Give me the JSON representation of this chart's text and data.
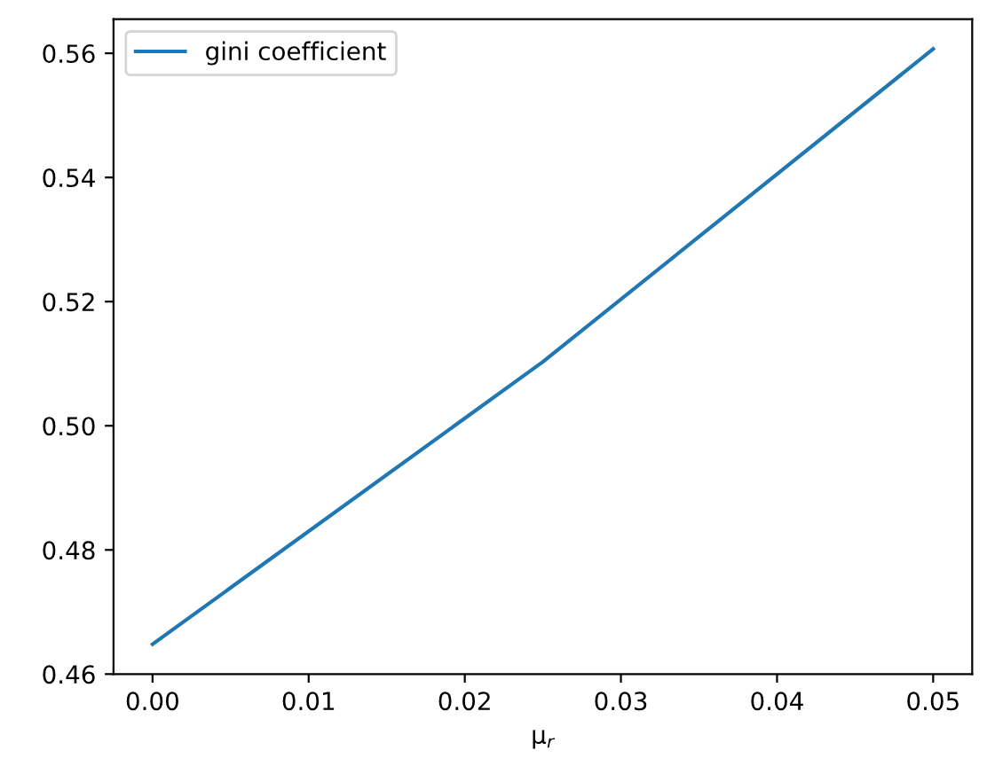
{
  "chart_data": {
    "type": "line",
    "xlabel": "μ$_{r}$",
    "x": [
      0,
      0.025,
      0.05
    ],
    "series": [
      {
        "name": "gini coefficient",
        "color": "#1f77b4",
        "values": [
          0.4648,
          0.5103,
          0.5607
        ]
      }
    ],
    "xlim": [
      -0.0025,
      0.0525
    ],
    "ylim": [
      0.46,
      0.5655
    ],
    "xticks": [
      {
        "value": 0,
        "label": "0.00"
      },
      0.01,
      0.02,
      0.03,
      0.04,
      0.05
    ],
    "yticks": [
      {
        "value": 0.46,
        "label": "0.46"
      },
      {
        "value": 0.48,
        "label": "0.48"
      },
      {
        "value": 0.5,
        "label": "0.50"
      },
      {
        "value": 0.52,
        "label": "0.52"
      },
      {
        "value": 0.54,
        "label": "0.54"
      },
      {
        "value": 0.56,
        "label": "0.56"
      }
    ],
    "legend": "top left",
    "grid": false
  }
}
